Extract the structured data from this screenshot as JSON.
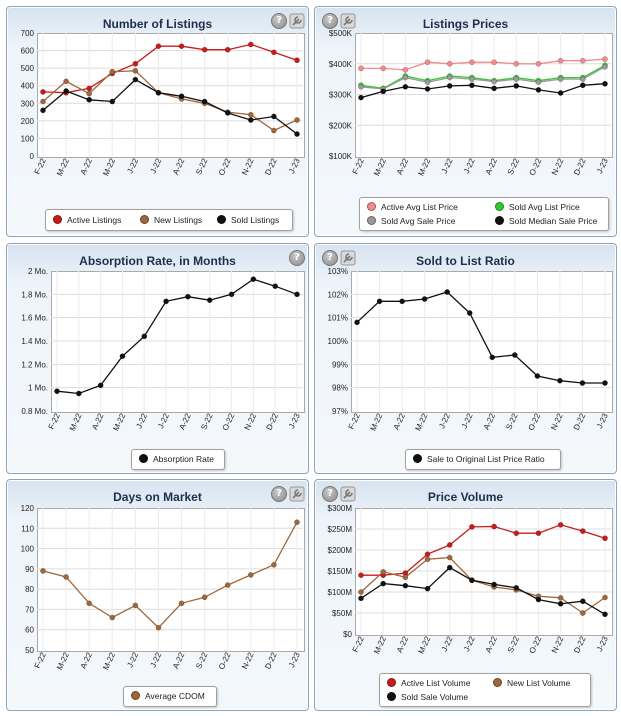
{
  "x_labels": [
    "F-22",
    "M-22",
    "A-22",
    "M-22",
    "J-22",
    "J-22",
    "A-22",
    "S-22",
    "O-22",
    "N-22",
    "D-22",
    "J-23"
  ],
  "icons": {
    "help": "help-icon",
    "help_glyph": "?",
    "tools": "wrench-icon"
  },
  "chart_data": [
    {
      "id": "listings",
      "type": "line",
      "title": "Number of Listings",
      "ylim": [
        0,
        700
      ],
      "y_ticks": [
        "0",
        "100",
        "200",
        "300",
        "400",
        "500",
        "600",
        "700"
      ],
      "grid": true,
      "legend_position": "bottom",
      "series": [
        {
          "name": "Active Listings",
          "color": "#c81c1c",
          "values": [
            365,
            360,
            385,
            470,
            525,
            625,
            625,
            605,
            605,
            635,
            590,
            545
          ]
        },
        {
          "name": "New Listings",
          "color": "#a0673c",
          "values": [
            310,
            425,
            355,
            480,
            485,
            360,
            325,
            300,
            250,
            235,
            145,
            205
          ]
        },
        {
          "name": "Sold Listings",
          "color": "#111111",
          "values": [
            260,
            370,
            320,
            310,
            435,
            360,
            340,
            310,
            245,
            205,
            225,
            125
          ]
        }
      ]
    },
    {
      "id": "prices",
      "type": "line",
      "title": "Listings Prices",
      "ylim": [
        100000,
        500000
      ],
      "y_ticks": [
        "$100K",
        "$200K",
        "$300K",
        "$400K",
        "$500K"
      ],
      "grid": true,
      "legend_position": "bottom",
      "series": [
        {
          "name": "Active Avg List Price",
          "color": "#f28c8c",
          "values": [
            385000,
            385000,
            380000,
            405000,
            400000,
            405000,
            405000,
            400000,
            400000,
            410000,
            410000,
            415000
          ]
        },
        {
          "name": "Sold Avg List Price",
          "color": "#2ccc2c",
          "values": [
            330000,
            320000,
            360000,
            345000,
            360000,
            355000,
            345000,
            355000,
            345000,
            355000,
            355000,
            395000
          ]
        },
        {
          "name": "Sold Avg Sale Price",
          "color": "#9a9a9a",
          "values": [
            325000,
            318000,
            355000,
            340000,
            355000,
            350000,
            342000,
            350000,
            340000,
            350000,
            350000,
            390000
          ]
        },
        {
          "name": "Sold Median Sale Price",
          "color": "#111111",
          "values": [
            290000,
            310000,
            325000,
            318000,
            328000,
            330000,
            320000,
            328000,
            315000,
            305000,
            330000,
            335000
          ]
        }
      ]
    },
    {
      "id": "absorption",
      "type": "line",
      "title": "Absorption Rate, in Months",
      "ylim": [
        0.8,
        2.0
      ],
      "y_ticks": [
        "0.8 Mo.",
        "1 Mo.",
        "1.2 Mo.",
        "1.4 Mo.",
        "1.6 Mo.",
        "1.8 Mo.",
        "2 Mo."
      ],
      "grid": true,
      "legend_position": "bottom",
      "series": [
        {
          "name": "Absorption Rate",
          "color": "#111111",
          "values": [
            0.97,
            0.95,
            1.02,
            1.27,
            1.44,
            1.74,
            1.78,
            1.75,
            1.8,
            1.93,
            1.87,
            1.8
          ]
        }
      ]
    },
    {
      "id": "ratio",
      "type": "line",
      "title": "Sold to List Ratio",
      "ylim": [
        97,
        103
      ],
      "y_ticks": [
        "97%",
        "98%",
        "99%",
        "100%",
        "101%",
        "102%",
        "103%"
      ],
      "grid": true,
      "legend_position": "bottom",
      "series": [
        {
          "name": "Sale to Original List Price Ratio",
          "color": "#111111",
          "values": [
            100.8,
            101.7,
            101.7,
            101.8,
            102.1,
            101.2,
            99.3,
            99.4,
            98.5,
            98.3,
            98.2,
            98.2
          ]
        }
      ]
    },
    {
      "id": "dom",
      "type": "line",
      "title": "Days on Market",
      "ylim": [
        50,
        120
      ],
      "y_ticks": [
        "50",
        "60",
        "70",
        "80",
        "90",
        "100",
        "110",
        "120"
      ],
      "grid": true,
      "legend_position": "bottom",
      "series": [
        {
          "name": "Average CDOM",
          "color": "#a0673c",
          "values": [
            89,
            86,
            73,
            66,
            72,
            61,
            73,
            76,
            82,
            87,
            92,
            113
          ]
        }
      ]
    },
    {
      "id": "volume",
      "type": "line",
      "title": "Price Volume",
      "ylim": [
        0,
        300000000
      ],
      "y_ticks": [
        "$0",
        "$50M",
        "$100M",
        "$150M",
        "$200M",
        "$250M",
        "$300M"
      ],
      "grid": true,
      "legend_position": "bottom",
      "series": [
        {
          "name": "Active List Volume",
          "color": "#c81c1c",
          "values": [
            140000000,
            140000000,
            145000000,
            190000000,
            212000000,
            255000000,
            256000000,
            240000000,
            240000000,
            260000000,
            245000000,
            228000000
          ]
        },
        {
          "name": "New List Volume",
          "color": "#a0673c",
          "values": [
            100000000,
            148000000,
            135000000,
            178000000,
            182000000,
            128000000,
            112000000,
            105000000,
            90000000,
            86000000,
            50000000,
            87000000
          ]
        },
        {
          "name": "Sold Sale Volume",
          "color": "#111111",
          "values": [
            85000000,
            120000000,
            115000000,
            108000000,
            158000000,
            128000000,
            118000000,
            110000000,
            82000000,
            72000000,
            78000000,
            47000000
          ]
        }
      ]
    }
  ]
}
